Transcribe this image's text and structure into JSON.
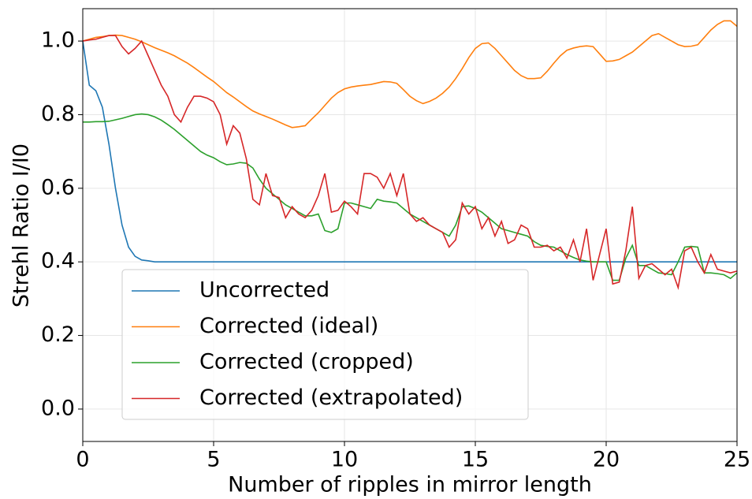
{
  "chart_data": {
    "type": "line",
    "xlabel": "Number of ripples in mirror length",
    "ylabel": "Strehl Ratio I/I0",
    "x": [
      0,
      0.25,
      0.5,
      0.75,
      1,
      1.25,
      1.5,
      1.75,
      2,
      2.25,
      2.5,
      2.75,
      3,
      3.25,
      3.5,
      3.75,
      4,
      4.25,
      4.5,
      4.75,
      5,
      5.25,
      5.5,
      5.75,
      6,
      6.25,
      6.5,
      6.75,
      7,
      7.25,
      7.5,
      7.75,
      8,
      8.25,
      8.5,
      8.75,
      9,
      9.25,
      9.5,
      9.75,
      10,
      10.25,
      10.5,
      10.75,
      11,
      11.25,
      11.5,
      11.75,
      12,
      12.25,
      12.5,
      12.75,
      13,
      13.25,
      13.5,
      13.75,
      14,
      14.25,
      14.5,
      14.75,
      15,
      15.25,
      15.5,
      15.75,
      16,
      16.25,
      16.5,
      16.75,
      17,
      17.25,
      17.5,
      17.75,
      18,
      18.25,
      18.5,
      18.75,
      19,
      19.25,
      19.5,
      19.75,
      20,
      20.25,
      20.5,
      20.75,
      21,
      21.25,
      21.5,
      21.75,
      22,
      22.25,
      22.5,
      22.75,
      23,
      23.25,
      23.5,
      23.75,
      24,
      24.25,
      24.5,
      24.75,
      25
    ],
    "series": [
      {
        "name": "Uncorrected",
        "color": "#1f77b4",
        "values": [
          1.0,
          0.88,
          0.865,
          0.82,
          0.72,
          0.6,
          0.5,
          0.44,
          0.415,
          0.405,
          0.403,
          0.4,
          0.4,
          0.4,
          0.4,
          0.4,
          0.4,
          0.4,
          0.4,
          0.4,
          0.4,
          0.4,
          0.4,
          0.4,
          0.4,
          0.4,
          0.4,
          0.4,
          0.4,
          0.4,
          0.4,
          0.4,
          0.4,
          0.4,
          0.4,
          0.4,
          0.4,
          0.4,
          0.4,
          0.4,
          0.4,
          0.4,
          0.4,
          0.4,
          0.4,
          0.4,
          0.4,
          0.4,
          0.4,
          0.4,
          0.4,
          0.4,
          0.4,
          0.4,
          0.4,
          0.4,
          0.4,
          0.4,
          0.4,
          0.4,
          0.4,
          0.4,
          0.4,
          0.4,
          0.4,
          0.4,
          0.4,
          0.4,
          0.4,
          0.4,
          0.4,
          0.4,
          0.4,
          0.4,
          0.4,
          0.4,
          0.4,
          0.4,
          0.4,
          0.4,
          0.4,
          0.4,
          0.4,
          0.4,
          0.4,
          0.4,
          0.4,
          0.4,
          0.4,
          0.4,
          0.4,
          0.4,
          0.4,
          0.4,
          0.4,
          0.4,
          0.4,
          0.4,
          0.4,
          0.4,
          0.4
        ]
      },
      {
        "name": "Corrected (ideal)",
        "color": "#ff7f0e",
        "values": [
          1.0,
          1.005,
          1.01,
          1.012,
          1.015,
          1.016,
          1.015,
          1.01,
          1.005,
          0.998,
          0.99,
          0.982,
          0.975,
          0.968,
          0.96,
          0.95,
          0.94,
          0.928,
          0.915,
          0.902,
          0.89,
          0.875,
          0.86,
          0.848,
          0.835,
          0.822,
          0.81,
          0.802,
          0.795,
          0.788,
          0.78,
          0.772,
          0.765,
          0.767,
          0.77,
          0.788,
          0.805,
          0.825,
          0.845,
          0.86,
          0.87,
          0.875,
          0.878,
          0.88,
          0.882,
          0.886,
          0.89,
          0.889,
          0.885,
          0.868,
          0.85,
          0.838,
          0.83,
          0.836,
          0.845,
          0.858,
          0.875,
          0.898,
          0.925,
          0.955,
          0.98,
          0.993,
          0.995,
          0.98,
          0.96,
          0.94,
          0.92,
          0.906,
          0.898,
          0.898,
          0.9,
          0.918,
          0.94,
          0.96,
          0.975,
          0.981,
          0.985,
          0.987,
          0.985,
          0.965,
          0.945,
          0.946,
          0.95,
          0.96,
          0.97,
          0.985,
          1.0,
          1.015,
          1.02,
          1.01,
          1.0,
          0.99,
          0.985,
          0.986,
          0.99,
          1.01,
          1.03,
          1.045,
          1.055,
          1.055,
          1.04
        ]
      },
      {
        "name": "Corrected (cropped)",
        "color": "#2ca02c",
        "values": [
          0.78,
          0.78,
          0.781,
          0.781,
          0.782,
          0.786,
          0.79,
          0.795,
          0.8,
          0.802,
          0.8,
          0.794,
          0.785,
          0.773,
          0.76,
          0.745,
          0.73,
          0.715,
          0.7,
          0.69,
          0.683,
          0.672,
          0.664,
          0.666,
          0.67,
          0.668,
          0.655,
          0.625,
          0.6,
          0.585,
          0.57,
          0.555,
          0.545,
          0.535,
          0.525,
          0.525,
          0.53,
          0.485,
          0.48,
          0.49,
          0.56,
          0.56,
          0.555,
          0.55,
          0.545,
          0.57,
          0.565,
          0.563,
          0.56,
          0.545,
          0.53,
          0.52,
          0.51,
          0.5,
          0.49,
          0.48,
          0.47,
          0.5,
          0.55,
          0.552,
          0.545,
          0.535,
          0.52,
          0.505,
          0.49,
          0.485,
          0.48,
          0.475,
          0.47,
          0.455,
          0.445,
          0.442,
          0.44,
          0.43,
          0.42,
          0.412,
          0.405,
          0.402,
          0.4,
          0.4,
          0.4,
          0.35,
          0.35,
          0.41,
          0.445,
          0.39,
          0.39,
          0.38,
          0.37,
          0.368,
          0.365,
          0.4,
          0.44,
          0.442,
          0.44,
          0.37,
          0.37,
          0.368,
          0.365,
          0.355,
          0.37
        ]
      },
      {
        "name": "Corrected (extrapolated)",
        "color": "#d62728",
        "values": [
          1.0,
          1.003,
          1.005,
          1.01,
          1.015,
          1.015,
          0.985,
          0.965,
          0.98,
          1.0,
          0.96,
          0.92,
          0.88,
          0.85,
          0.8,
          0.78,
          0.82,
          0.85,
          0.85,
          0.845,
          0.835,
          0.8,
          0.72,
          0.77,
          0.75,
          0.68,
          0.57,
          0.555,
          0.64,
          0.58,
          0.575,
          0.52,
          0.55,
          0.53,
          0.52,
          0.54,
          0.58,
          0.64,
          0.535,
          0.54,
          0.565,
          0.55,
          0.53,
          0.64,
          0.64,
          0.63,
          0.6,
          0.64,
          0.58,
          0.64,
          0.53,
          0.51,
          0.52,
          0.5,
          0.49,
          0.48,
          0.44,
          0.46,
          0.56,
          0.53,
          0.55,
          0.49,
          0.52,
          0.47,
          0.51,
          0.45,
          0.46,
          0.5,
          0.49,
          0.44,
          0.44,
          0.445,
          0.43,
          0.44,
          0.41,
          0.46,
          0.4,
          0.49,
          0.35,
          0.42,
          0.49,
          0.34,
          0.345,
          0.43,
          0.55,
          0.355,
          0.39,
          0.395,
          0.38,
          0.365,
          0.38,
          0.33,
          0.43,
          0.44,
          0.4,
          0.37,
          0.42,
          0.38,
          0.375,
          0.37,
          0.375
        ]
      }
    ],
    "xlim": [
      0,
      25
    ],
    "xticks": [
      0,
      5,
      10,
      15,
      20,
      25
    ],
    "ylim": [
      -0.088,
      1.088
    ],
    "yticks": [
      {
        "value": 0,
        "label": "0.0"
      },
      0.2,
      0.4,
      0.6,
      0.8,
      {
        "value": 1,
        "label": "1.0"
      }
    ],
    "grid": true,
    "legend": "lower left"
  }
}
